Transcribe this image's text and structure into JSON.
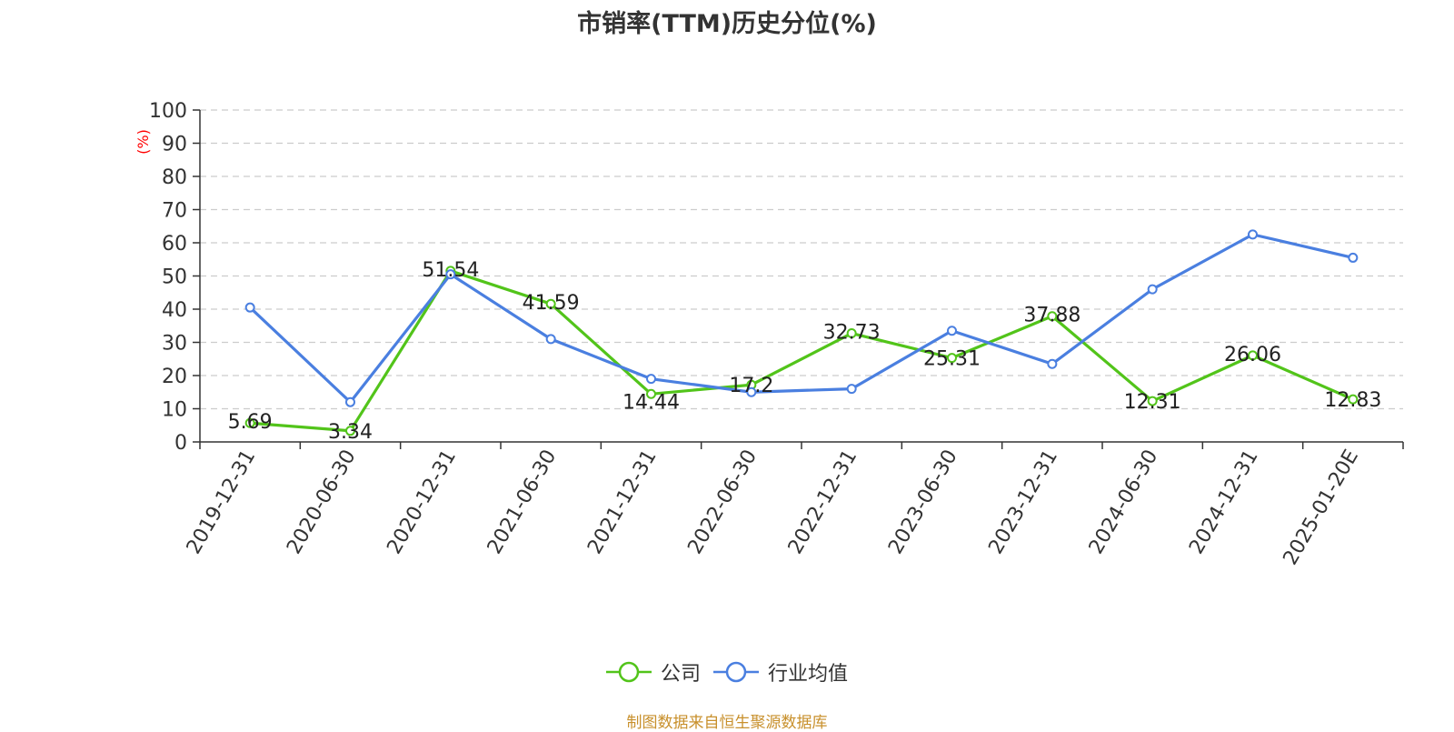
{
  "chart_data": {
    "type": "line",
    "title": "市销率(TTM)历史分位(%)",
    "ylabel": "(%)",
    "xlabel": "",
    "ylim": [
      0,
      100
    ],
    "yticks": [
      0,
      10,
      20,
      30,
      40,
      50,
      60,
      70,
      80,
      90,
      100
    ],
    "grid": true,
    "legend_position": "bottom-center",
    "categories": [
      "2019-12-31",
      "2020-06-30",
      "2020-12-31",
      "2021-06-30",
      "2021-12-31",
      "2022-06-30",
      "2022-12-31",
      "2023-06-30",
      "2023-12-31",
      "2024-06-30",
      "2024-12-31",
      "2025-01-20E"
    ],
    "series": [
      {
        "name": "公司",
        "color": "#52c41a",
        "values": [
          5.69,
          3.34,
          51.54,
          41.59,
          14.44,
          17.2,
          32.73,
          25.31,
          37.88,
          12.31,
          26.06,
          12.83
        ],
        "labels": [
          "5.69",
          "3.34",
          "51.54",
          "41.59",
          "14.44",
          "17.2",
          "32.73",
          "25.31",
          "37.88",
          "12.31",
          "26.06",
          "12.83"
        ]
      },
      {
        "name": "行业均值",
        "color": "#4a7fe0",
        "values": [
          40.5,
          12,
          50.5,
          31,
          19,
          15,
          16,
          33.5,
          23.5,
          46,
          62.5,
          55.5
        ]
      }
    ]
  },
  "legend": {
    "company": "公司",
    "industry": "行业均值"
  },
  "source": "制图数据来自恒生聚源数据库"
}
